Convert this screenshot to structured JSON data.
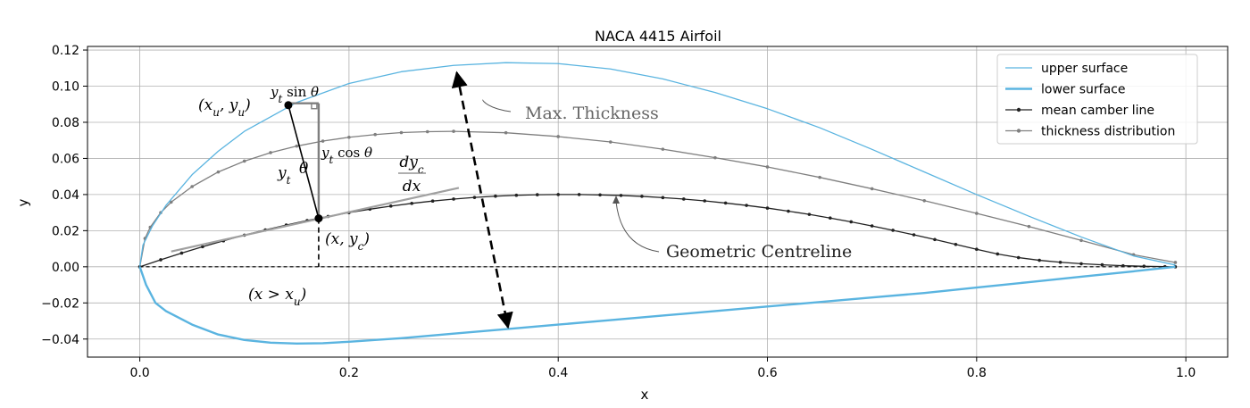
{
  "chart_data": {
    "type": "line",
    "title": "NACA 4415 Airfoil",
    "xlabel": "x",
    "ylabel": "y",
    "xlim": [
      -0.05,
      1.04
    ],
    "ylim": [
      -0.05,
      0.122
    ],
    "grid": true,
    "legend_position": "top-right",
    "x_ticks": [
      0.0,
      0.2,
      0.4,
      0.6,
      0.8,
      1.0
    ],
    "x_tick_labels": [
      "0.0",
      "0.2",
      "0.4",
      "0.6",
      "0.8",
      "1.0"
    ],
    "y_ticks": [
      -0.04,
      -0.02,
      0.0,
      0.02,
      0.04,
      0.06,
      0.08,
      0.1,
      0.12
    ],
    "y_tick_labels": [
      "−0.04",
      "−0.02",
      "0.00",
      "0.02",
      "0.04",
      "0.06",
      "0.08",
      "0.10",
      "0.12"
    ],
    "series": [
      {
        "name": "upper surface",
        "color": "#5ab4e0",
        "x": [
          0.0,
          0.003,
          0.012,
          0.025,
          0.05,
          0.075,
          0.1,
          0.15,
          0.2,
          0.25,
          0.3,
          0.35,
          0.4,
          0.45,
          0.5,
          0.55,
          0.6,
          0.65,
          0.7,
          0.75,
          0.8,
          0.85,
          0.9,
          0.95,
          0.99
        ],
        "y": [
          0.0,
          0.012,
          0.0225,
          0.034,
          0.051,
          0.064,
          0.075,
          0.091,
          0.1015,
          0.108,
          0.1115,
          0.113,
          0.1125,
          0.1095,
          0.104,
          0.0965,
          0.0875,
          0.077,
          0.065,
          0.0525,
          0.04,
          0.028,
          0.0165,
          0.006,
          0.001
        ]
      },
      {
        "name": "lower surface",
        "color": "#5ab4e0",
        "x": [
          0.0,
          0.003,
          0.006,
          0.015,
          0.025,
          0.05,
          0.075,
          0.1,
          0.125,
          0.15,
          0.175,
          0.2,
          0.25,
          0.3,
          0.35,
          0.4,
          0.45,
          0.5,
          0.55,
          0.6,
          0.65,
          0.7,
          0.75,
          0.8,
          0.85,
          0.9,
          0.95,
          0.99
        ],
        "y": [
          0.0,
          -0.005,
          -0.01,
          -0.02,
          -0.0245,
          -0.032,
          -0.0375,
          -0.0405,
          -0.042,
          -0.0425,
          -0.0423,
          -0.0415,
          -0.0395,
          -0.037,
          -0.0345,
          -0.032,
          -0.0295,
          -0.027,
          -0.0245,
          -0.022,
          -0.0195,
          -0.017,
          -0.0145,
          -0.0115,
          -0.0085,
          -0.0055,
          -0.0025,
          0.0
        ]
      },
      {
        "name": "mean camber line",
        "color": "#222222",
        "x": [
          0.0,
          0.02,
          0.04,
          0.06,
          0.08,
          0.1,
          0.12,
          0.14,
          0.16,
          0.18,
          0.2,
          0.22,
          0.24,
          0.26,
          0.28,
          0.3,
          0.32,
          0.34,
          0.36,
          0.38,
          0.4,
          0.42,
          0.44,
          0.46,
          0.48,
          0.5,
          0.52,
          0.54,
          0.56,
          0.58,
          0.6,
          0.62,
          0.64,
          0.66,
          0.68,
          0.7,
          0.72,
          0.74,
          0.76,
          0.78,
          0.8,
          0.82,
          0.84,
          0.86,
          0.88,
          0.9,
          0.92,
          0.94,
          0.96,
          0.98,
          0.99
        ],
        "y": [
          0.0,
          0.0039,
          0.0076,
          0.0111,
          0.0144,
          0.0175,
          0.0204,
          0.0231,
          0.0256,
          0.0279,
          0.03,
          0.0319,
          0.0336,
          0.0351,
          0.0364,
          0.0375,
          0.0384,
          0.0391,
          0.0396,
          0.0399,
          0.04,
          0.04,
          0.0398,
          0.0395,
          0.039,
          0.0383,
          0.0375,
          0.0365,
          0.0353,
          0.034,
          0.0325,
          0.0308,
          0.029,
          0.027,
          0.0249,
          0.0226,
          0.0202,
          0.0177,
          0.0151,
          0.0124,
          0.0097,
          0.0071,
          0.0051,
          0.0036,
          0.0025,
          0.0017,
          0.0011,
          0.0006,
          0.0003,
          0.0001,
          0.0
        ]
      },
      {
        "name": "thickness distribution",
        "color": "#7f7f7f",
        "x": [
          0.0,
          0.005,
          0.01,
          0.02,
          0.03,
          0.05,
          0.075,
          0.1,
          0.125,
          0.15,
          0.175,
          0.2,
          0.225,
          0.25,
          0.275,
          0.3,
          0.35,
          0.4,
          0.45,
          0.5,
          0.55,
          0.6,
          0.65,
          0.7,
          0.75,
          0.8,
          0.85,
          0.9,
          0.95,
          0.99
        ],
        "y": [
          0.0,
          0.0157,
          0.0219,
          0.03,
          0.0358,
          0.0444,
          0.0525,
          0.0585,
          0.0632,
          0.0668,
          0.0696,
          0.0717,
          0.0732,
          0.0743,
          0.0748,
          0.075,
          0.0742,
          0.0721,
          0.0691,
          0.0651,
          0.0604,
          0.0553,
          0.0495,
          0.0432,
          0.0366,
          0.0296,
          0.0223,
          0.0146,
          0.0067,
          0.0024
        ]
      }
    ],
    "annotations": {
      "upper_point": "(x_u, y_u)",
      "yt_sin": "y_t sin θ",
      "yt_cos": "y_t cos θ",
      "yt": "y_t",
      "theta": "θ",
      "camber_point": "(x, y_c)",
      "x_gt_xu": "(x > x_u)",
      "slope": "dy_c / dx",
      "max_thickness": "Max. Thickness",
      "geometric_centreline": "Geometric Centreline"
    },
    "colors": {
      "surface": "#5ab4e0",
      "camber": "#222222",
      "thickness": "#7f7f7f",
      "annotation_grey": "#7f7f7f"
    }
  }
}
